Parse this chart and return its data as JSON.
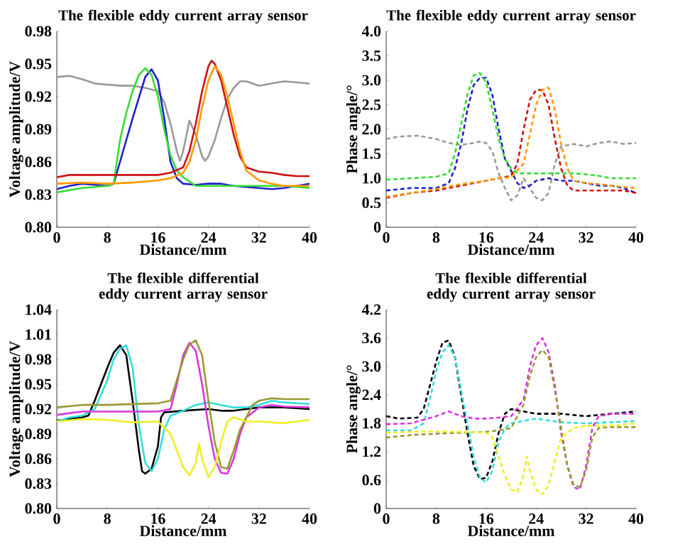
{
  "chart_data": [
    {
      "type": "line",
      "title": "The flexible eddy current array sensor",
      "xlabel": "Distance/mm",
      "ylabel": "Voltage amplitude/V",
      "xlim": [
        0,
        40
      ],
      "ylim": [
        0.8,
        0.98
      ],
      "xticks": [
        0,
        8,
        16,
        24,
        32,
        40
      ],
      "yticks": [
        {
          "value": 0.8,
          "label": "0.80"
        },
        0.83,
        0.86,
        0.89,
        0.92,
        0.95,
        0.98
      ],
      "line_style": "solid",
      "series": [
        {
          "color": "#999999",
          "x": [
            0,
            2,
            4,
            6,
            8,
            10,
            12,
            14,
            16,
            17,
            18,
            19,
            19.5,
            20,
            21,
            22,
            23,
            23.5,
            24,
            25,
            26,
            27,
            28,
            29,
            30,
            32,
            34,
            36,
            38,
            40
          ],
          "values": [
            0.938,
            0.939,
            0.936,
            0.932,
            0.931,
            0.93,
            0.93,
            0.928,
            0.925,
            0.915,
            0.895,
            0.87,
            0.861,
            0.87,
            0.898,
            0.885,
            0.865,
            0.861,
            0.865,
            0.88,
            0.9,
            0.918,
            0.928,
            0.934,
            0.934,
            0.93,
            0.932,
            0.934,
            0.933,
            0.932
          ]
        },
        {
          "color": "#1f1fcc",
          "x": [
            0,
            2,
            4,
            8,
            9,
            10,
            12,
            14,
            15,
            16,
            17,
            18,
            19,
            20,
            22,
            24,
            26,
            28,
            30,
            32,
            34,
            36,
            38,
            40
          ],
          "values": [
            0.835,
            0.838,
            0.84,
            0.838,
            0.84,
            0.86,
            0.9,
            0.938,
            0.945,
            0.935,
            0.9,
            0.86,
            0.845,
            0.84,
            0.839,
            0.84,
            0.84,
            0.838,
            0.837,
            0.836,
            0.835,
            0.836,
            0.838,
            0.84
          ]
        },
        {
          "color": "#33dd33",
          "x": [
            0,
            4,
            8,
            9,
            10,
            11,
            12,
            13,
            14,
            15,
            16,
            17,
            18,
            19,
            20,
            22,
            24,
            28,
            32,
            36,
            40
          ],
          "values": [
            0.832,
            0.836,
            0.838,
            0.84,
            0.88,
            0.905,
            0.925,
            0.94,
            0.946,
            0.94,
            0.92,
            0.89,
            0.866,
            0.852,
            0.846,
            0.838,
            0.838,
            0.838,
            0.838,
            0.838,
            0.836
          ]
        },
        {
          "color": "#cc1111",
          "x": [
            0,
            2,
            8,
            16,
            18,
            20,
            21,
            22,
            23,
            24,
            24.5,
            25,
            26,
            27,
            28,
            29,
            30,
            32,
            34,
            36,
            38,
            40
          ],
          "values": [
            0.846,
            0.848,
            0.848,
            0.848,
            0.85,
            0.855,
            0.87,
            0.895,
            0.925,
            0.948,
            0.953,
            0.95,
            0.935,
            0.91,
            0.885,
            0.865,
            0.855,
            0.851,
            0.85,
            0.848,
            0.847,
            0.847
          ]
        },
        {
          "color": "#ff9900",
          "x": [
            0,
            4,
            8,
            12,
            16,
            18,
            20,
            21,
            22,
            23,
            24,
            25,
            26,
            27,
            28,
            29,
            30,
            32,
            34,
            36,
            40
          ],
          "values": [
            0.84,
            0.841,
            0.84,
            0.841,
            0.843,
            0.845,
            0.85,
            0.86,
            0.88,
            0.91,
            0.935,
            0.948,
            0.94,
            0.92,
            0.895,
            0.87,
            0.852,
            0.843,
            0.84,
            0.838,
            0.838
          ]
        }
      ]
    },
    {
      "type": "line",
      "title": "The flexible eddy current array sensor",
      "xlabel": "Distance/mm",
      "ylabel": "Phase angle/°",
      "xlim": [
        0,
        40
      ],
      "ylim": [
        0,
        4
      ],
      "xticks": [
        0,
        8,
        16,
        24,
        32,
        40
      ],
      "yticks": [
        0,
        0.5,
        {
          "value": 1,
          "label": "1.0"
        },
        1.5,
        {
          "value": 2,
          "label": "2.0"
        },
        2.5,
        {
          "value": 3,
          "label": "3.0"
        },
        3.5,
        {
          "value": 4,
          "label": "4.0"
        }
      ],
      "line_style": "dashed",
      "series": [
        {
          "color": "#999999",
          "x": [
            0,
            2,
            5,
            8,
            10,
            12,
            14,
            15,
            16,
            17,
            18,
            19,
            20,
            21,
            22,
            23,
            24,
            25,
            26,
            27,
            28,
            30,
            32,
            34,
            36,
            38,
            40
          ],
          "values": [
            1.8,
            1.85,
            1.87,
            1.8,
            1.72,
            1.68,
            1.72,
            1.75,
            1.72,
            1.55,
            1.1,
            0.8,
            0.55,
            0.65,
            1.0,
            0.8,
            0.6,
            0.55,
            0.7,
            1.3,
            1.65,
            1.7,
            1.65,
            1.72,
            1.75,
            1.7,
            1.72
          ]
        },
        {
          "color": "#1f1fcc",
          "x": [
            0,
            4,
            8,
            10,
            11,
            12,
            13,
            14,
            15,
            16,
            17,
            18,
            19,
            20,
            21,
            22,
            23,
            24,
            26,
            28,
            30,
            32,
            34,
            36,
            38,
            40
          ],
          "values": [
            0.75,
            0.8,
            0.8,
            0.9,
            1.2,
            1.7,
            2.4,
            2.9,
            3.05,
            3.05,
            2.7,
            2.0,
            1.4,
            1.15,
            0.9,
            0.8,
            0.85,
            0.95,
            1.0,
            0.95,
            0.95,
            0.9,
            0.85,
            0.85,
            0.8,
            0.7
          ]
        },
        {
          "color": "#33dd33",
          "x": [
            0,
            4,
            8,
            10,
            11,
            12,
            13,
            14,
            15,
            16,
            17,
            18,
            19,
            20,
            21,
            22,
            24,
            26,
            28,
            30,
            32,
            34,
            36,
            40
          ],
          "values": [
            0.97,
            1.0,
            1.03,
            1.1,
            1.5,
            2.1,
            2.7,
            3.1,
            3.15,
            2.95,
            2.4,
            1.8,
            1.4,
            1.2,
            1.1,
            1.1,
            1.1,
            1.1,
            1.1,
            1.1,
            1.08,
            1.05,
            1.0,
            1.0
          ]
        },
        {
          "color": "#cc1111",
          "x": [
            0,
            4,
            8,
            12,
            16,
            18,
            20,
            21,
            22,
            23,
            24,
            25,
            26,
            27,
            28,
            29,
            30,
            32,
            34,
            36,
            38,
            40
          ],
          "values": [
            0.6,
            0.7,
            0.75,
            0.85,
            0.95,
            1.0,
            1.05,
            1.3,
            2.0,
            2.6,
            2.8,
            2.8,
            2.5,
            1.8,
            1.2,
            0.85,
            0.75,
            0.75,
            0.75,
            0.75,
            0.75,
            0.7
          ]
        },
        {
          "color": "#ff9900",
          "x": [
            0,
            4,
            8,
            12,
            16,
            18,
            20,
            22,
            23,
            24,
            25,
            26,
            27,
            28,
            29,
            30,
            32,
            34,
            36,
            38,
            40
          ],
          "values": [
            0.62,
            0.7,
            0.78,
            0.88,
            0.95,
            1.0,
            1.02,
            1.3,
            1.9,
            2.5,
            2.8,
            2.85,
            2.4,
            1.7,
            1.2,
            0.95,
            0.9,
            0.88,
            0.85,
            0.82,
            0.8
          ]
        }
      ]
    },
    {
      "type": "line",
      "title": "The flexible differential eddy current array sensor",
      "xlabel": "Distance/mm",
      "ylabel": "Voltage amplitude/V",
      "xlim": [
        0,
        40
      ],
      "ylim": [
        0.8,
        1.04
      ],
      "xticks": [
        0,
        8,
        16,
        24,
        32,
        40
      ],
      "yticks": [
        {
          "value": 0.8,
          "label": "0.80"
        },
        0.83,
        0.86,
        0.89,
        0.92,
        0.95,
        0.98,
        1.01,
        1.04
      ],
      "line_style": "solid",
      "series": [
        {
          "color": "#000000",
          "x": [
            0,
            2,
            4,
            5,
            6,
            7,
            8,
            9,
            10,
            11,
            12,
            13,
            13.5,
            14,
            15,
            16,
            16.5,
            17,
            20,
            24,
            26,
            28,
            30,
            32,
            36,
            40
          ],
          "values": [
            0.906,
            0.908,
            0.91,
            0.912,
            0.93,
            0.95,
            0.97,
            0.988,
            0.997,
            0.985,
            0.93,
            0.87,
            0.845,
            0.842,
            0.848,
            0.875,
            0.91,
            0.916,
            0.918,
            0.92,
            0.918,
            0.918,
            0.92,
            0.922,
            0.922,
            0.92
          ]
        },
        {
          "color": "#33dddd",
          "x": [
            0,
            2,
            4,
            6,
            8,
            9,
            10,
            11,
            12,
            13,
            14,
            15,
            16,
            17,
            18,
            20,
            22,
            24,
            26,
            28,
            30,
            32,
            34,
            36,
            40
          ],
          "values": [
            0.905,
            0.91,
            0.912,
            0.92,
            0.955,
            0.98,
            0.993,
            0.997,
            0.97,
            0.9,
            0.855,
            0.845,
            0.86,
            0.895,
            0.912,
            0.918,
            0.925,
            0.928,
            0.925,
            0.922,
            0.922,
            0.925,
            0.93,
            0.928,
            0.926
          ]
        },
        {
          "color": "#dd33dd",
          "x": [
            0,
            4,
            8,
            12,
            16,
            18,
            19,
            20,
            21,
            22,
            23,
            24,
            25,
            26,
            27,
            28,
            29,
            30,
            32,
            34,
            36,
            40
          ],
          "values": [
            0.913,
            0.917,
            0.917,
            0.917,
            0.917,
            0.92,
            0.95,
            0.985,
            1.0,
            0.99,
            0.95,
            0.9,
            0.86,
            0.843,
            0.842,
            0.86,
            0.89,
            0.91,
            0.922,
            0.925,
            0.923,
            0.922
          ]
        },
        {
          "color": "#999933",
          "x": [
            0,
            4,
            8,
            12,
            16,
            18,
            19,
            20,
            21,
            22,
            23,
            24,
            25,
            26,
            27,
            28,
            29,
            30,
            31,
            32,
            34,
            36,
            40
          ],
          "values": [
            0.922,
            0.925,
            0.925,
            0.926,
            0.927,
            0.93,
            0.955,
            0.98,
            0.998,
            1.003,
            0.985,
            0.93,
            0.88,
            0.85,
            0.848,
            0.87,
            0.895,
            0.91,
            0.925,
            0.93,
            0.933,
            0.932,
            0.932
          ]
        },
        {
          "color": "#eeee22",
          "x": [
            0,
            4,
            8,
            12,
            16,
            18,
            19,
            20,
            21,
            22,
            22.5,
            23,
            24,
            25,
            26,
            27,
            28,
            30,
            32,
            36,
            40
          ],
          "values": [
            0.905,
            0.908,
            0.907,
            0.904,
            0.905,
            0.89,
            0.87,
            0.85,
            0.84,
            0.855,
            0.878,
            0.86,
            0.838,
            0.85,
            0.88,
            0.905,
            0.91,
            0.905,
            0.905,
            0.903,
            0.907
          ]
        }
      ]
    },
    {
      "type": "line",
      "title": "The flexible differential eddy current array sensor",
      "xlabel": "Distance/mm",
      "ylabel": "Phase angle/°",
      "xlim": [
        0,
        40
      ],
      "ylim": [
        0,
        4.2
      ],
      "xticks": [
        0,
        8,
        16,
        24,
        32,
        40
      ],
      "yticks": [
        0,
        0.6,
        1.2,
        1.8,
        2.4,
        {
          "value": 3,
          "label": "3.0"
        },
        3.6,
        4.2
      ],
      "line_style": "dashed",
      "series": [
        {
          "color": "#000000",
          "x": [
            0,
            2,
            5,
            6,
            7,
            8,
            9,
            10,
            11,
            12,
            13,
            14,
            15,
            16,
            17,
            18,
            19,
            20,
            24,
            28,
            32,
            36,
            40
          ],
          "values": [
            1.95,
            1.9,
            1.92,
            2.1,
            2.6,
            3.1,
            3.5,
            3.55,
            3.2,
            2.4,
            1.6,
            0.9,
            0.62,
            0.65,
            1.0,
            1.6,
            2.0,
            2.1,
            2.0,
            2.0,
            1.95,
            2.0,
            2.05
          ]
        },
        {
          "color": "#33dddd",
          "x": [
            0,
            4,
            6,
            7,
            8,
            9,
            10,
            11,
            12,
            13,
            14,
            15,
            16,
            17,
            18,
            19,
            20,
            24,
            28,
            32,
            36,
            40
          ],
          "values": [
            1.65,
            1.65,
            1.8,
            2.3,
            2.9,
            3.3,
            3.45,
            3.2,
            2.5,
            1.8,
            1.1,
            0.65,
            0.55,
            0.8,
            1.4,
            1.7,
            1.8,
            1.9,
            1.82,
            1.8,
            1.82,
            1.85
          ]
        },
        {
          "color": "#dd33dd",
          "x": [
            0,
            4,
            8,
            10,
            12,
            14,
            16,
            18,
            20,
            22,
            23,
            24,
            25,
            26,
            27,
            28,
            29,
            30,
            31,
            32,
            33,
            34,
            36,
            40
          ],
          "values": [
            1.78,
            1.8,
            1.95,
            2.05,
            1.95,
            1.9,
            1.9,
            1.92,
            1.95,
            2.3,
            3.0,
            3.45,
            3.6,
            3.3,
            2.6,
            1.6,
            0.9,
            0.45,
            0.4,
            0.9,
            1.7,
            1.95,
            2.0,
            2.0
          ]
        },
        {
          "color": "#999933",
          "x": [
            0,
            4,
            8,
            12,
            16,
            18,
            20,
            22,
            23,
            24,
            25,
            26,
            27,
            28,
            29,
            30,
            31,
            32,
            33,
            34,
            36,
            40
          ],
          "values": [
            1.5,
            1.55,
            1.58,
            1.6,
            1.62,
            1.65,
            1.7,
            2.2,
            2.8,
            3.2,
            3.35,
            3.2,
            2.5,
            1.7,
            0.9,
            0.5,
            0.45,
            0.8,
            1.5,
            1.7,
            1.72,
            1.72
          ]
        },
        {
          "color": "#eeee22",
          "x": [
            0,
            4,
            8,
            12,
            16,
            17,
            18,
            19,
            20,
            21,
            22,
            22.5,
            23,
            24,
            25,
            26,
            27,
            28,
            30,
            32,
            36,
            40
          ],
          "values": [
            1.6,
            1.62,
            1.63,
            1.62,
            1.6,
            1.5,
            1.1,
            0.7,
            0.4,
            0.35,
            0.7,
            1.1,
            0.8,
            0.4,
            0.3,
            0.5,
            1.0,
            1.5,
            1.7,
            1.75,
            1.75,
            1.8
          ]
        }
      ]
    }
  ]
}
